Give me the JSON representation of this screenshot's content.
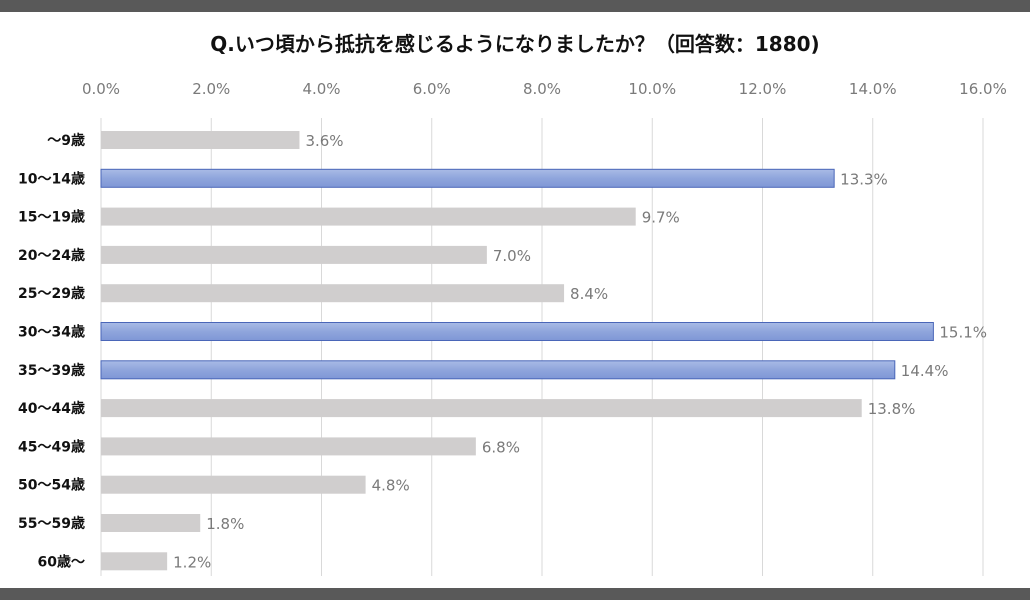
{
  "chart_data": {
    "type": "bar",
    "orientation": "horizontal",
    "title": "Q.いつ頃から抵抗を感じるようになりましたか？（回答数：1880)",
    "categories": [
      "〜9歳",
      "10〜14歳",
      "15〜19歳",
      "20〜24歳",
      "25〜29歳",
      "30〜34歳",
      "35〜39歳",
      "40〜44歳",
      "45〜49歳",
      "50〜54歳",
      "55〜59歳",
      "60歳〜"
    ],
    "values": [
      3.6,
      13.3,
      9.7,
      7.0,
      8.4,
      15.1,
      14.4,
      13.8,
      6.8,
      4.8,
      1.8,
      1.2
    ],
    "data_labels": [
      "3.6%",
      "13.3%",
      "9.7%",
      "7.0%",
      "8.4%",
      "15.1%",
      "14.4%",
      "13.8%",
      "6.8%",
      "4.8%",
      "1.8%",
      "1.2%"
    ],
    "highlighted": [
      false,
      true,
      false,
      false,
      false,
      true,
      true,
      false,
      false,
      false,
      false,
      false
    ],
    "xlim": [
      0,
      16
    ],
    "x_ticks": [
      "0.0%",
      "2.0%",
      "4.0%",
      "6.0%",
      "8.0%",
      "10.0%",
      "12.0%",
      "14.0%",
      "16.0%"
    ],
    "x_tick_values": [
      0,
      2,
      4,
      6,
      8,
      10,
      12,
      14,
      16
    ],
    "x_axis_position": "top",
    "grid": true,
    "colors": {
      "default_bar": "#d0cece",
      "highlight_bar": "#8fa5dc",
      "highlight_border": "#4a66b8",
      "gridline": "#d9d9d9",
      "frame": "#595959"
    }
  }
}
